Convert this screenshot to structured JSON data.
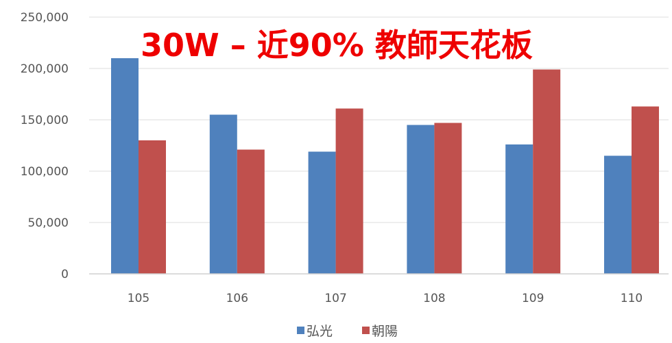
{
  "overlay_title": "30W – 近90% 教師天花板",
  "chart_data": {
    "type": "bar",
    "categories": [
      "105",
      "106",
      "107",
      "108",
      "109",
      "110"
    ],
    "series": [
      {
        "name": "弘光",
        "color": "#4f81bd",
        "values": [
          210000,
          155000,
          119000,
          145000,
          126000,
          115000
        ]
      },
      {
        "name": "朝陽",
        "color": "#c0504d",
        "values": [
          130000,
          121000,
          161000,
          147000,
          199000,
          163000
        ]
      }
    ],
    "yticks": [
      "0",
      "50,000",
      "100,000",
      "150,000",
      "200,000",
      "250,000"
    ],
    "ylim": [
      0,
      250000
    ],
    "grid": true,
    "legend": "bottom-center"
  }
}
